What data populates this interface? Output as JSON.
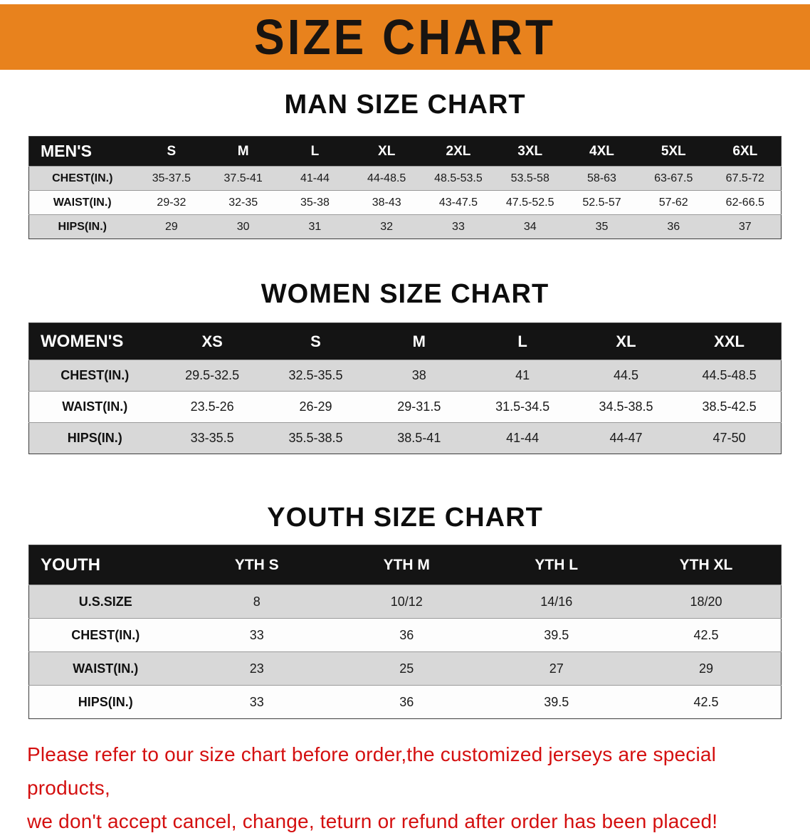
{
  "banner": {
    "title": "SIZE CHART",
    "bg_color": "#e8821d",
    "text_color": "#181411"
  },
  "sections": {
    "men": {
      "heading": "MAN SIZE CHART"
    },
    "women": {
      "heading": "WOMEN SIZE CHART"
    },
    "youth": {
      "heading": "YOUTH SIZE CHART"
    }
  },
  "tables": {
    "men": {
      "header": [
        "MEN'S",
        "S",
        "M",
        "L",
        "XL",
        "2XL",
        "3XL",
        "4XL",
        "5XL",
        "6XL"
      ],
      "rows": [
        [
          "CHEST(IN.)",
          "35-37.5",
          "37.5-41",
          "41-44",
          "44-48.5",
          "48.5-53.5",
          "53.5-58",
          "58-63",
          "63-67.5",
          "67.5-72"
        ],
        [
          "WAIST(IN.)",
          "29-32",
          "32-35",
          "35-38",
          "38-43",
          "43-47.5",
          "47.5-52.5",
          "52.5-57",
          "57-62",
          "62-66.5"
        ],
        [
          "HIPS(IN.)",
          "29",
          "30",
          "31",
          "32",
          "33",
          "34",
          "35",
          "36",
          "37"
        ]
      ]
    },
    "women": {
      "header": [
        "WOMEN'S",
        "XS",
        "S",
        "M",
        "L",
        "XL",
        "XXL"
      ],
      "rows": [
        [
          "CHEST(IN.)",
          "29.5-32.5",
          "32.5-35.5",
          "38",
          "41",
          "44.5",
          "44.5-48.5"
        ],
        [
          "WAIST(IN.)",
          "23.5-26",
          "26-29",
          "29-31.5",
          "31.5-34.5",
          "34.5-38.5",
          "38.5-42.5"
        ],
        [
          "HIPS(IN.)",
          "33-35.5",
          "35.5-38.5",
          "38.5-41",
          "41-44",
          "44-47",
          "47-50"
        ]
      ]
    },
    "youth": {
      "header": [
        "YOUTH",
        "YTH S",
        "YTH M",
        "YTH L",
        "YTH XL"
      ],
      "rows": [
        [
          "U.S.SIZE",
          "8",
          "10/12",
          "14/16",
          "18/20"
        ],
        [
          "CHEST(IN.)",
          "33",
          "36",
          "39.5",
          "42.5"
        ],
        [
          "WAIST(IN.)",
          "23",
          "25",
          "27",
          "29"
        ],
        [
          "HIPS(IN.)",
          "33",
          "36",
          "39.5",
          "42.5"
        ]
      ]
    }
  },
  "disclaimer": {
    "line1": "Please refer to our size chart before order,the customized jerseys are special products,",
    "line2": "we don't accept cancel, change, teturn or refund after order has been placed!",
    "color": "#d40f0f"
  }
}
